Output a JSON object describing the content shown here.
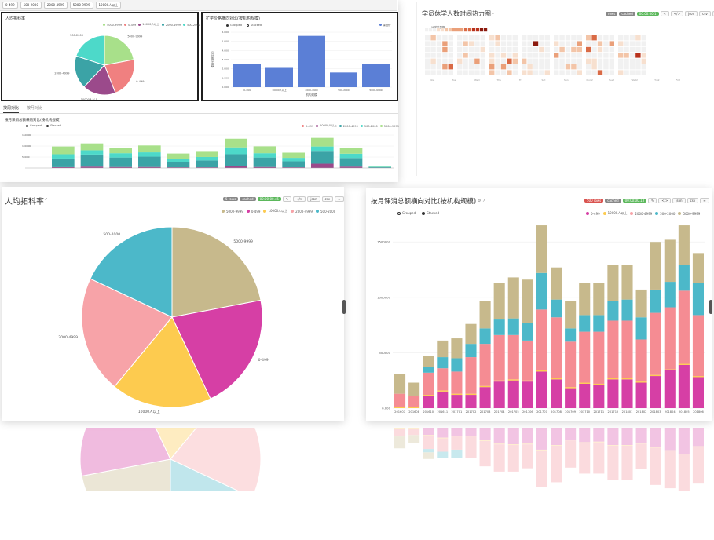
{
  "colors": {
    "c_5000": "#c7b98c",
    "c_0": "#d63fa5",
    "c_10000": "#fdcb4f",
    "c_2000": "#f7a3a8",
    "c_500": "#4cb8c9",
    "mini_green": "#a8e08a",
    "mini_red": "#f08080",
    "mini_teal": "#3ba3a6",
    "mini_purple": "#9b4a8b",
    "mini_cyan": "#4dd9c9",
    "mini_blue": "#5b7fd6"
  },
  "top_filter": {
    "chips": [
      "0-499",
      "500-2000",
      "2000-4999",
      "5000-9999",
      "10000人以上"
    ]
  },
  "small_pie": {
    "title": "人均拓科率",
    "legend": [
      {
        "label": "5000-9999",
        "color": "#a8e08a"
      },
      {
        "label": "0-499",
        "color": "#f08080"
      },
      {
        "label": "10000人以上",
        "color": "#9b4a8b"
      },
      {
        "label": "2000-4999",
        "color": "#3ba3a6"
      },
      {
        "label": "500-2000",
        "color": "#4dd9c9"
      }
    ],
    "chart_data": {
      "type": "pie",
      "labels": [
        "5000-9999",
        "0-499",
        "10000人以上",
        "2000-4999",
        "500-2000"
      ],
      "values": [
        22,
        22,
        18,
        18,
        20
      ],
      "slice_labels": [
        "5000-9999",
        "0-499",
        "10000人以上",
        "2000-4999",
        "500-2000"
      ]
    }
  },
  "small_bar": {
    "title": "扩学价格横向对比(按机构规模)",
    "legend": [
      "Grouped",
      "Stacked"
    ],
    "legend_right": "课程价",
    "xlabel": "机构规模",
    "ylabel": "课程价格平均",
    "chart_data": {
      "type": "bar",
      "categories": [
        "0-499",
        "10000人以上",
        "2000-4999",
        "500-2000",
        "5000-9999"
      ],
      "values": [
        2500,
        2100,
        5600,
        1600,
        2500
      ],
      "ylim": [
        0,
        6000
      ],
      "yticks": [
        0,
        1000,
        2000,
        3000,
        4000,
        5000,
        6000
      ],
      "ytick_labels": [
        "0.000",
        "1.000",
        "2.000",
        "3.000",
        "4.000",
        "5.000",
        "6.000"
      ]
    }
  },
  "tabs": [
    "按周对比",
    "按月对比"
  ],
  "mini_stack": {
    "title": "按月课消总额横向对比(按机构规模)",
    "legend_left": [
      "Grouped",
      "Stacked"
    ],
    "legend_right": [
      "0-499",
      "10000人以上",
      "2000-4999",
      "500-2000",
      "5000-9999"
    ],
    "yticks": [
      "150000",
      "100000",
      "50000"
    ],
    "chart_data": {
      "type": "bar",
      "categories": [
        "w1",
        "w2",
        "w3",
        "w4",
        "w5",
        "w6",
        "w7",
        "w8",
        "w9",
        "w10",
        "w11",
        "w12"
      ],
      "series": [
        {
          "name": "0-499",
          "values": [
            5,
            8,
            6,
            6,
            4,
            4,
            10,
            6,
            4,
            25,
            8,
            1
          ]
        },
        {
          "name": "2000-4999",
          "values": [
            50,
            70,
            55,
            60,
            30,
            40,
            70,
            55,
            35,
            70,
            50,
            4
          ]
        },
        {
          "name": "500-2000",
          "values": [
            25,
            25,
            25,
            25,
            20,
            20,
            40,
            25,
            20,
            30,
            25,
            3
          ]
        },
        {
          "name": "5000-9999",
          "values": [
            45,
            40,
            30,
            40,
            30,
            30,
            50,
            40,
            30,
            50,
            35,
            5
          ]
        }
      ],
      "ylim": [
        0,
        210
      ]
    }
  },
  "heatmap": {
    "title": "学员休学人数时间热力图",
    "badges": [
      "rows",
      "cached",
      "00:00:00.1"
    ],
    "buttons": [
      "✎",
      "</>",
      "json",
      "csv",
      "≡"
    ],
    "legend_label": "休学学员数",
    "chart_data": {
      "type": "heatmap",
      "x_labels": [
        "Mon",
        "Tue",
        "Wed",
        "Thu",
        "Fri",
        "Sat",
        "Sun",
        "Mon2",
        "Tue2",
        "Wed2",
        "Thu2",
        "Fri2"
      ],
      "rows": 7,
      "cols": 35,
      "note": "sparse weekly activity grid; darker = more suspensions"
    }
  },
  "big_pie": {
    "title": "人均拓科率",
    "badges": [
      "5 rows",
      "cached",
      "00:00:00.45"
    ],
    "buttons": [
      "✎",
      "</>",
      "json",
      "csv",
      "≡"
    ],
    "legend": [
      {
        "label": "5000-9999",
        "color": "#c7b98c"
      },
      {
        "label": "0-499",
        "color": "#d63fa5"
      },
      {
        "label": "10000人以上",
        "color": "#fdcb4f"
      },
      {
        "label": "2000-4999",
        "color": "#f7a3a8"
      },
      {
        "label": "500-2000",
        "color": "#4cb8c9"
      }
    ],
    "chart_data": {
      "type": "pie",
      "labels": [
        "5000-9999",
        "0-499",
        "10000人以上",
        "2000-4999",
        "500-2000"
      ],
      "values": [
        22,
        21,
        18,
        21,
        18
      ]
    }
  },
  "big_stack": {
    "title": "按月课消总额横向对比(按机构规模)",
    "badges": [
      "500 rows",
      "cached",
      "00:00:00.13"
    ],
    "buttons": [
      "✎",
      "</>",
      "json",
      "csv",
      "≡"
    ],
    "legend_left": [
      "Grouped",
      "Stacked"
    ],
    "legend_right": [
      {
        "label": "0-499",
        "color": "#d63fa5"
      },
      {
        "label": "10000人以上",
        "color": "#fdcb4f"
      },
      {
        "label": "2000-4999",
        "color": "#f7a3a8"
      },
      {
        "label": "500-2000",
        "color": "#4cb8c9"
      },
      {
        "label": "5000-9999",
        "color": "#c7b98c"
      }
    ],
    "chart_data": {
      "type": "bar",
      "stacked": true,
      "categories": [
        "201607",
        "201608",
        "201610",
        "201611",
        "201701",
        "201702",
        "201703",
        "201704",
        "201705",
        "201706",
        "201707",
        "201708",
        "201709",
        "201710",
        "201711",
        "201712",
        "201801",
        "201802",
        "201803",
        "201804",
        "201805",
        "201806"
      ],
      "series": [
        {
          "name": "0-499",
          "values": [
            0,
            0,
            110000,
            150000,
            120000,
            120000,
            190000,
            240000,
            250000,
            240000,
            330000,
            260000,
            180000,
            220000,
            210000,
            260000,
            260000,
            230000,
            290000,
            340000,
            390000,
            280000
          ]
        },
        {
          "name": "10000人以上",
          "values": [
            10000,
            10000,
            10000,
            10000,
            10000,
            10000,
            10000,
            10000,
            10000,
            10000,
            10000,
            10000,
            10000,
            10000,
            10000,
            10000,
            10000,
            10000,
            10000,
            10000,
            10000,
            10000
          ]
        },
        {
          "name": "2000-4999",
          "values": [
            120000,
            100000,
            200000,
            200000,
            200000,
            330000,
            380000,
            410000,
            400000,
            360000,
            550000,
            550000,
            410000,
            460000,
            470000,
            520000,
            520000,
            380000,
            560000,
            560000,
            660000,
            550000
          ]
        },
        {
          "name": "500-2000",
          "values": [
            0,
            0,
            50000,
            100000,
            120000,
            120000,
            140000,
            140000,
            150000,
            160000,
            330000,
            160000,
            120000,
            150000,
            150000,
            180000,
            190000,
            200000,
            210000,
            230000,
            230000,
            290000
          ]
        },
        {
          "name": "5000-9999",
          "values": [
            180000,
            120000,
            100000,
            150000,
            180000,
            180000,
            250000,
            330000,
            370000,
            390000,
            430000,
            290000,
            250000,
            290000,
            290000,
            320000,
            310000,
            250000,
            430000,
            380000,
            360000,
            270000
          ]
        }
      ],
      "ylim": [
        0,
        1700000
      ],
      "yticks": [
        0,
        500000,
        1000000,
        1500000
      ],
      "ytick_labels": [
        "0.000",
        "500000",
        "1000000",
        "1500000"
      ]
    }
  }
}
